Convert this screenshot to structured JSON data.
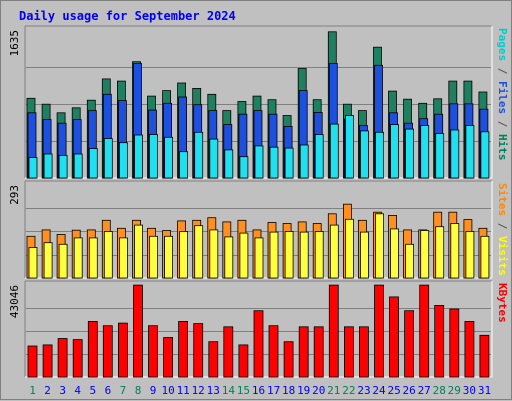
{
  "title": "Daily usage for September 2024",
  "chart_data": {
    "type": "bar",
    "title": "Daily usage for September 2024",
    "categories": [
      "1",
      "2",
      "3",
      "4",
      "5",
      "6",
      "7",
      "8",
      "9",
      "10",
      "11",
      "12",
      "13",
      "14",
      "15",
      "16",
      "17",
      "18",
      "19",
      "20",
      "21",
      "22",
      "23",
      "24",
      "25",
      "26",
      "27",
      "28",
      "29",
      "30",
      "31"
    ],
    "weekend_days": [
      1,
      7,
      8,
      14,
      15,
      21,
      22,
      28,
      29
    ],
    "weekend_color": "#00805c",
    "weekday_color": "#0000ff",
    "panels": [
      {
        "id": "hits",
        "max_label": "1635",
        "ylim": [
          0,
          1635
        ],
        "labels": [
          {
            "text": "Pages",
            "color": "#00cccc"
          },
          {
            "text": " / ",
            "color": "#555555"
          },
          {
            "text": "Files",
            "color": "#1e50e0"
          },
          {
            "text": " / ",
            "color": "#555555"
          },
          {
            "text": "Hits",
            "color": "#00805c"
          }
        ],
        "series": [
          {
            "name": "Hits",
            "color": "#1e8060",
            "values": [
              880,
              815,
              720,
              775,
              860,
              1095,
              1070,
              1285,
              905,
              965,
              1050,
              990,
              925,
              745,
              845,
              905,
              865,
              690,
              1210,
              865,
              1615,
              815,
              745,
              1445,
              960,
              870,
              825,
              875,
              1070,
              1070,
              950
            ]
          },
          {
            "name": "Files",
            "color": "#1e50e0",
            "values": [
              720,
              645,
              605,
              645,
              745,
              925,
              855,
              1265,
              750,
              825,
              895,
              810,
              745,
              590,
              705,
              745,
              705,
              570,
              965,
              725,
              1265,
              650,
              580,
              1245,
              720,
              605,
              655,
              705,
              820,
              820,
              760
            ]
          },
          {
            "name": "Pages",
            "color": "#20e0f0",
            "values": [
              225,
              265,
              250,
              265,
              325,
              435,
              390,
              475,
              480,
              450,
              290,
              505,
              430,
              310,
              235,
              355,
              340,
              330,
              365,
              480,
              595,
              690,
              520,
              505,
              590,
              540,
              580,
              490,
              530,
              580,
              510
            ]
          }
        ]
      },
      {
        "id": "visits",
        "max_label": "293",
        "ylim": [
          0,
          293
        ],
        "labels": [
          {
            "text": "Sites",
            "color": "#ff8800"
          },
          {
            "text": " / ",
            "color": "#555555"
          },
          {
            "text": "Visits",
            "color": "#ffff00"
          }
        ],
        "series": [
          {
            "name": "Visits",
            "color": "#ff9020",
            "values": [
              130,
              150,
              136,
              149,
              150,
              180,
              155,
              180,
              155,
              148,
              178,
              180,
              188,
              175,
              180,
              150,
              173,
              170,
              175,
              170,
              200,
              230,
              180,
              205,
              195,
              150,
              150,
              205,
              205,
              182,
              155
            ]
          },
          {
            "name": "Sites",
            "color": "#ffff40",
            "values": [
              95,
              110,
              105,
              125,
              125,
              145,
              125,
              165,
              130,
              130,
              145,
              163,
              150,
              128,
              140,
              125,
              143,
              145,
              143,
              145,
              165,
              183,
              143,
              200,
              153,
              105,
              148,
              160,
              170,
              145,
              130
            ]
          }
        ]
      },
      {
        "id": "kbytes",
        "max_label": "43046",
        "ylim": [
          0,
          43046
        ],
        "labels": [
          {
            "text": "KBytes",
            "color": "#ff0000"
          }
        ],
        "series": [
          {
            "name": "KBytes",
            "color": "#ff0000",
            "values": [
              14500,
              15000,
              18000,
              17500,
              26000,
              24000,
              25200,
              43000,
              24000,
              18500,
              26000,
              25000,
              16500,
              23500,
              15000,
              31000,
              24000,
              16500,
              23500,
              23500,
              43000,
              23500,
              23500,
              43000,
              37500,
              31000,
              43000,
              33500,
              31800,
              26000,
              19500
            ]
          }
        ]
      }
    ]
  }
}
